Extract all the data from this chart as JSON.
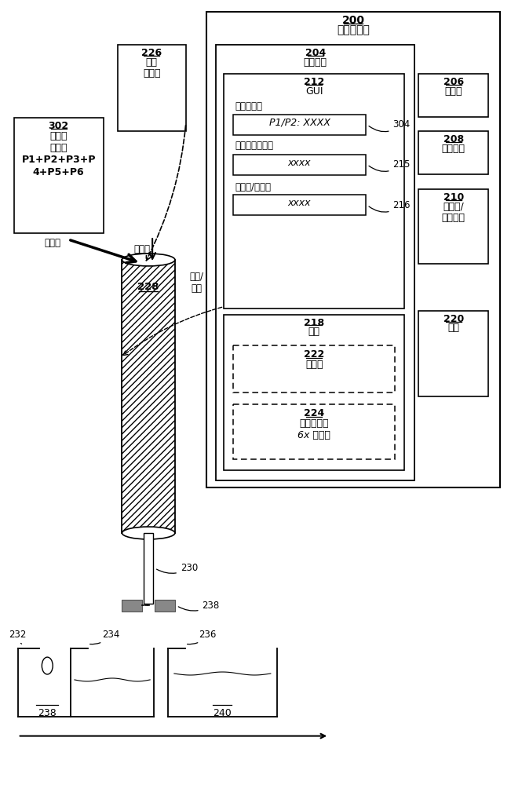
{
  "bg_color": "#ffffff",
  "title": "计算机系统",
  "title_num": "200",
  "sim_label": "仿真软件",
  "sim_num": "204",
  "gui_num": "212",
  "gui_label": "GUI",
  "desired_label": "期望的量：",
  "desired_field": "P1/P2: XXXX",
  "desired_num": "304",
  "protein_apply_label": "蛋白质的施加量",
  "protein_apply_num": "215",
  "protein_apply_field": "xxxx",
  "col_type_label": "柱类型/尺寸：",
  "col_type_num": "216",
  "col_type_field": "xxxx",
  "output_num": "218",
  "output_label": "输出",
  "salt_num": "222",
  "salt_label": "盐浓度",
  "elution_num": "224",
  "elution_line1": "洗脱体积：",
  "elution_line2": "6x 柱体积",
  "col_model_num": "206",
  "col_model_label": "柱模型",
  "pore_model_num": "208",
  "pore_model_label": "孔隙模型",
  "isotherm_num": "210",
  "isotherm_line1": "等温线/",
  "isotherm_line2": "反应模型",
  "config_num": "220",
  "config_label": "配置",
  "buffer_num": "226",
  "buffer_line1": "洗脱",
  "buffer_line2": "缓冲液",
  "col_num": "228",
  "tube_label": "230",
  "valve_num": "238",
  "protein_box_num": "302",
  "protein_line1": "蛋白质",
  "protein_line2": "溶液：",
  "protein_line3": "P1+P2+P3+P",
  "protein_line4": "4+P5+P6",
  "apply_label1": "施加！",
  "apply_label2": "施加！",
  "create_line1": "创建/",
  "create_line2": "使用",
  "frac_num1": "232",
  "frac_num2": "234",
  "frac_num3": "236",
  "container1_num": "238",
  "container2_num": "240"
}
